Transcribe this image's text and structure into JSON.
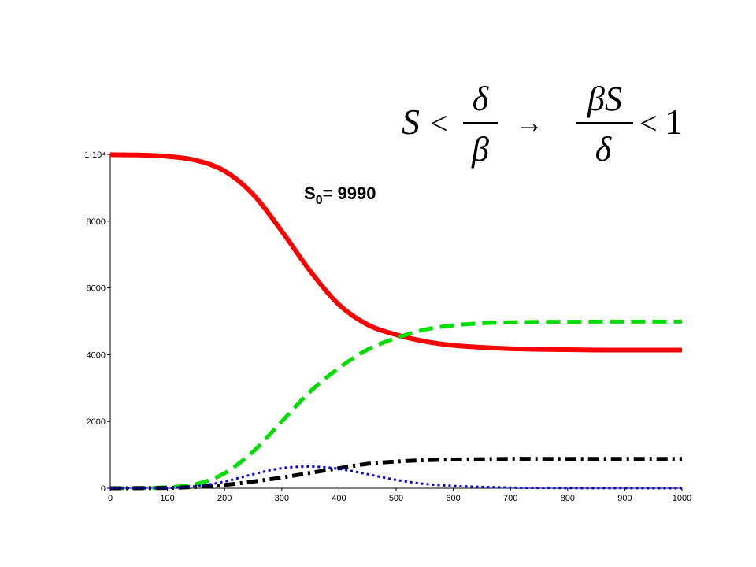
{
  "formula": {
    "lhs_var": "S",
    "lt1": "<",
    "frac1_num": "δ",
    "frac1_den": "β",
    "arrow": "→",
    "frac2_num": "βS",
    "frac2_den": "δ",
    "lt2": "<",
    "rhs": "1"
  },
  "annotation": {
    "main": "S",
    "subscript": "0",
    "rest": "= 9990"
  },
  "chart_data": {
    "type": "line",
    "title": "",
    "xlabel": "",
    "ylabel": "",
    "xlim": [
      0,
      1000
    ],
    "ylim": [
      0,
      10000
    ],
    "grid": false,
    "x_ticks": [
      0,
      100,
      200,
      300,
      400,
      500,
      600,
      700,
      800,
      900,
      1000
    ],
    "x_tick_labels": [
      "0",
      "100",
      "200",
      "300",
      "400",
      "500",
      "600",
      "700",
      "800",
      "900",
      "1000"
    ],
    "y_ticks": [
      0,
      2000,
      4000,
      6000,
      8000,
      10000
    ],
    "y_tick_labels": [
      "0",
      "2000",
      "4000",
      "6000",
      "8000",
      "1·10⁴"
    ],
    "series": [
      {
        "color": "#ff0000",
        "style": "solid",
        "x": [
          0,
          50,
          100,
          150,
          200,
          250,
          300,
          350,
          400,
          450,
          500,
          550,
          600,
          650,
          700,
          750,
          800,
          850,
          900,
          950,
          1000
        ],
        "y": [
          9990,
          9980,
          9940,
          9820,
          9500,
          8800,
          7700,
          6500,
          5500,
          4900,
          4600,
          4400,
          4280,
          4220,
          4180,
          4160,
          4150,
          4140,
          4140,
          4140,
          4140
        ]
      },
      {
        "color": "#00dd00",
        "style": "dashed",
        "x": [
          0,
          50,
          100,
          150,
          200,
          250,
          300,
          350,
          400,
          450,
          500,
          550,
          600,
          650,
          700,
          750,
          800,
          850,
          900,
          950,
          1000
        ],
        "y": [
          0,
          5,
          30,
          120,
          450,
          1100,
          2000,
          2900,
          3600,
          4150,
          4500,
          4750,
          4880,
          4940,
          4970,
          4980,
          4985,
          4990,
          4990,
          4990,
          4990
        ]
      },
      {
        "color": "#000000",
        "style": "dashdot",
        "x": [
          0,
          50,
          100,
          150,
          200,
          250,
          300,
          350,
          400,
          450,
          500,
          550,
          600,
          650,
          700,
          750,
          800,
          850,
          900,
          950,
          1000
        ],
        "y": [
          0,
          2,
          10,
          40,
          100,
          200,
          320,
          460,
          600,
          730,
          800,
          840,
          860,
          870,
          880,
          880,
          880,
          880,
          880,
          880,
          880
        ]
      },
      {
        "color": "#0000ee",
        "style": "dotted",
        "x": [
          0,
          50,
          100,
          150,
          200,
          250,
          300,
          350,
          400,
          450,
          500,
          550,
          600,
          650,
          700,
          750,
          800,
          850,
          900,
          950,
          1000
        ],
        "y": [
          0,
          2,
          10,
          60,
          200,
          420,
          600,
          650,
          580,
          420,
          250,
          130,
          70,
          40,
          20,
          10,
          5,
          3,
          2,
          1,
          0
        ]
      }
    ]
  }
}
